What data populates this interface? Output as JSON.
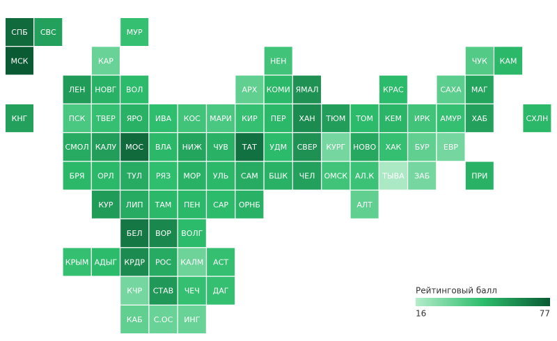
{
  "chart_data": {
    "type": "tilemap",
    "tiles": [
      {
        "label": "СПБ",
        "value": 72
      },
      {
        "label": "СВС",
        "value": 55
      },
      {
        "label": "МУР",
        "value": 45
      },
      {
        "label": "МСК",
        "value": 77
      },
      {
        "label": "КАР",
        "value": 33
      },
      {
        "label": "НЕН",
        "value": 42
      },
      {
        "label": "ЧУК",
        "value": 38
      },
      {
        "label": "КАМ",
        "value": 48
      },
      {
        "label": "ЛЕН",
        "value": 57
      },
      {
        "label": "НОВГ",
        "value": 50
      },
      {
        "label": "ВОЛ",
        "value": 47
      },
      {
        "label": "АРХ",
        "value": 35
      },
      {
        "label": "КОМИ",
        "value": 48
      },
      {
        "label": "ЯМАЛ",
        "value": 60
      },
      {
        "label": "КРАС",
        "value": 47
      },
      {
        "label": "САХА",
        "value": 36
      },
      {
        "label": "МАГ",
        "value": 54
      },
      {
        "label": "КНГ",
        "value": 55
      },
      {
        "label": "ПСК",
        "value": 40
      },
      {
        "label": "ТВЕР",
        "value": 45
      },
      {
        "label": "ЯРО",
        "value": 50
      },
      {
        "label": "ИВА",
        "value": 46
      },
      {
        "label": "КОС",
        "value": 42
      },
      {
        "label": "МАРИ",
        "value": 40
      },
      {
        "label": "КИР",
        "value": 45
      },
      {
        "label": "ПЕР",
        "value": 48
      },
      {
        "label": "ХАН",
        "value": 62
      },
      {
        "label": "ТЮМ",
        "value": 56
      },
      {
        "label": "ТОМ",
        "value": 47
      },
      {
        "label": "КЕМ",
        "value": 49
      },
      {
        "label": "ИРК",
        "value": 42
      },
      {
        "label": "АМУР",
        "value": 45
      },
      {
        "label": "ХАБ",
        "value": 55
      },
      {
        "label": "СХЛН",
        "value": 48
      },
      {
        "label": "СМОЛ",
        "value": 52
      },
      {
        "label": "КАЛУ",
        "value": 56
      },
      {
        "label": "МОС",
        "value": 72
      },
      {
        "label": "ВЛА",
        "value": 48
      },
      {
        "label": "НИЖ",
        "value": 54
      },
      {
        "label": "ЧУВ",
        "value": 50
      },
      {
        "label": "ТАТ",
        "value": 70
      },
      {
        "label": "УДМ",
        "value": 47
      },
      {
        "label": "СВЕР",
        "value": 60
      },
      {
        "label": "КУРГ",
        "value": 30
      },
      {
        "label": "НОВО",
        "value": 53
      },
      {
        "label": "ХАК",
        "value": 45
      },
      {
        "label": "БУР",
        "value": 35
      },
      {
        "label": "ЕВР",
        "value": 30
      },
      {
        "label": "БРЯ",
        "value": 48
      },
      {
        "label": "ОРЛ",
        "value": 48
      },
      {
        "label": "ТУЛ",
        "value": 52
      },
      {
        "label": "РЯЗ",
        "value": 46
      },
      {
        "label": "МОР",
        "value": 50
      },
      {
        "label": "УЛЬ",
        "value": 48
      },
      {
        "label": "САМ",
        "value": 52
      },
      {
        "label": "БШК",
        "value": 50
      },
      {
        "label": "ЧЕЛ",
        "value": 55
      },
      {
        "label": "ОМСК",
        "value": 42
      },
      {
        "label": "АЛ.К",
        "value": 43
      },
      {
        "label": "ТЫВА",
        "value": 18
      },
      {
        "label": "ЗАБ",
        "value": 30
      },
      {
        "label": "ПРИ",
        "value": 50
      },
      {
        "label": "КУР",
        "value": 57
      },
      {
        "label": "ЛИП",
        "value": 52
      },
      {
        "label": "ТАМ",
        "value": 48
      },
      {
        "label": "ПЕН",
        "value": 48
      },
      {
        "label": "САР",
        "value": 47
      },
      {
        "label": "ОРНБ",
        "value": 50
      },
      {
        "label": "АЛТ",
        "value": 35
      },
      {
        "label": "БЕЛ",
        "value": 68
      },
      {
        "label": "ВОР",
        "value": 63
      },
      {
        "label": "ВОЛГ",
        "value": 47
      },
      {
        "label": "КРЫМ",
        "value": 45
      },
      {
        "label": "АДЫГ",
        "value": 47
      },
      {
        "label": "КРДР",
        "value": 62
      },
      {
        "label": "РОС",
        "value": 52
      },
      {
        "label": "КАЛМ",
        "value": 32
      },
      {
        "label": "АСТ",
        "value": 45
      },
      {
        "label": "КЧР",
        "value": 30
      },
      {
        "label": "СТАВ",
        "value": 58
      },
      {
        "label": "ЧЕЧ",
        "value": 45
      },
      {
        "label": "ДАГ",
        "value": 45
      },
      {
        "label": "КАБ",
        "value": 35
      },
      {
        "label": "С.ОС",
        "value": 33
      },
      {
        "label": "ИНГ",
        "value": 33
      }
    ],
    "legend_title": "Рейтинговый балл",
    "vmin": 16,
    "vmax": 77,
    "colors": [
      "#b4ecca",
      "#2dbd6c",
      "#0a5a33"
    ]
  }
}
